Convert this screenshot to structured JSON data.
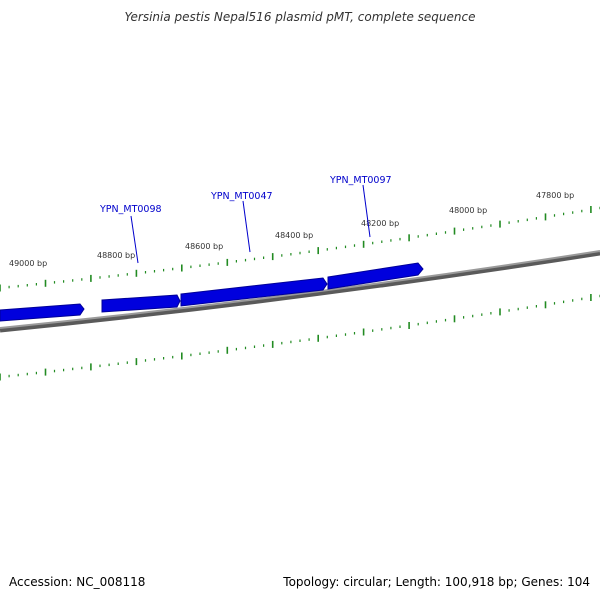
{
  "title": "Yersinia pestis Nepal516 plasmid pMT, complete sequence",
  "footer": {
    "accession_label": "Accession: NC_008118",
    "summary": "Topology: circular; Length: 100,918 bp; Genes: 104"
  },
  "map": {
    "topology": "circular",
    "length_bp": 100918,
    "gene_count": 104,
    "visible_range_bp": [
      47700,
      49100
    ],
    "scale_labels": [
      "49000 bp",
      "48800 bp",
      "48600 bp",
      "48400 bp",
      "48200 bp",
      "48000 bp",
      "47800 bp"
    ],
    "scale_positions_bp": [
      49000,
      48800,
      48600,
      48400,
      48200,
      48000,
      47800
    ],
    "gene_labels": [
      {
        "name": "YPN_MT0098",
        "position_bp": 48780
      },
      {
        "name": "YPN_MT0047",
        "position_bp": 48530
      },
      {
        "name": "YPN_MT0097",
        "position_bp": 48225
      }
    ],
    "colors": {
      "gene_fill": "#0000dd",
      "gene_highlight": "#3333ff",
      "gene_shadow": "#000099",
      "backbone": "#808080",
      "backbone_dark": "#5a5a5a",
      "tick": "#228B22",
      "label_text": "#0000cc",
      "scale_text": "#333333"
    }
  }
}
